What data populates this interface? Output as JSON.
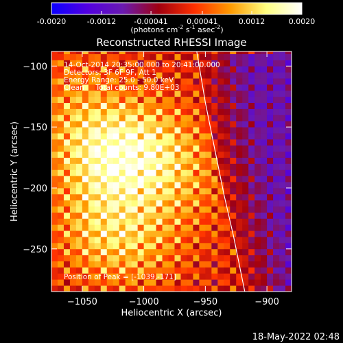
{
  "colorbar": {
    "ticks": [
      "-0.0020",
      "-0.0012",
      "-0.00041",
      "0.00041",
      "0.0012",
      "0.0020"
    ],
    "tick_values": [
      -0.002,
      -0.0012,
      -0.00041,
      0.00041,
      0.0012,
      0.002
    ],
    "range": [
      -0.002,
      0.002
    ],
    "units_base": "(photons cm",
    "units_exp1": "-2",
    "units_mid": " s",
    "units_exp2": "-1",
    "units_mid2": " asec",
    "units_exp3": "-2",
    "units_end": ")",
    "colors": [
      "#0b00ff",
      "#5200e0",
      "#6a1ab0",
      "#a00010",
      "#ff3000",
      "#ff9a00",
      "#ffff80",
      "#ffffff"
    ]
  },
  "chart_data": {
    "type": "heatmap",
    "title": "Reconstructed RHESSI Image",
    "xlabel": "Heliocentric X (arcsec)",
    "ylabel": "Heliocentric Y (arcsec)",
    "xlim": [
      -1075,
      -880
    ],
    "ylim": [
      -285,
      -88
    ],
    "xticks": [
      -1050,
      -1000,
      -950,
      -900
    ],
    "yticks": [
      -250,
      -200,
      -150,
      -100
    ],
    "xtick_labels": [
      "−1050",
      "−1000",
      "−950",
      "−900"
    ],
    "ytick_labels": [
      "−250",
      "−200",
      "−150",
      "−100"
    ],
    "peak": {
      "x": -1039,
      "y": -171
    },
    "bright_centers": [
      {
        "x": -1041,
        "y": -170,
        "w": 1.0
      },
      {
        "x": -1010,
        "y": -175,
        "w": 0.9
      },
      {
        "x": -1035,
        "y": -235,
        "w": 0.95
      },
      {
        "x": -985,
        "y": -165,
        "w": 0.6
      },
      {
        "x": -1055,
        "y": -120,
        "w": 0.55
      },
      {
        "x": -1000,
        "y": -250,
        "w": 0.55
      },
      {
        "x": -965,
        "y": -200,
        "w": 0.45
      }
    ],
    "limb": [
      {
        "x": -957,
        "y": -88
      },
      {
        "x": -950,
        "y": -130
      },
      {
        "x": -942,
        "y": -170
      },
      {
        "x": -935,
        "y": -205
      },
      {
        "x": -927,
        "y": -240
      },
      {
        "x": -918,
        "y": -285
      }
    ],
    "annotations": [
      "14-Oct-2014 20:35:00.000 to 20:41:00.000",
      "Detectors: 3F 6F 9F, Att 1",
      "Energy Range: 25.0 - 50.0 keV",
      "Clean     Total counts: 9.80E+03"
    ],
    "peak_label": "Position of Peak = [-1039,-171]"
  },
  "timestamp": "18-May-2022 02:48"
}
